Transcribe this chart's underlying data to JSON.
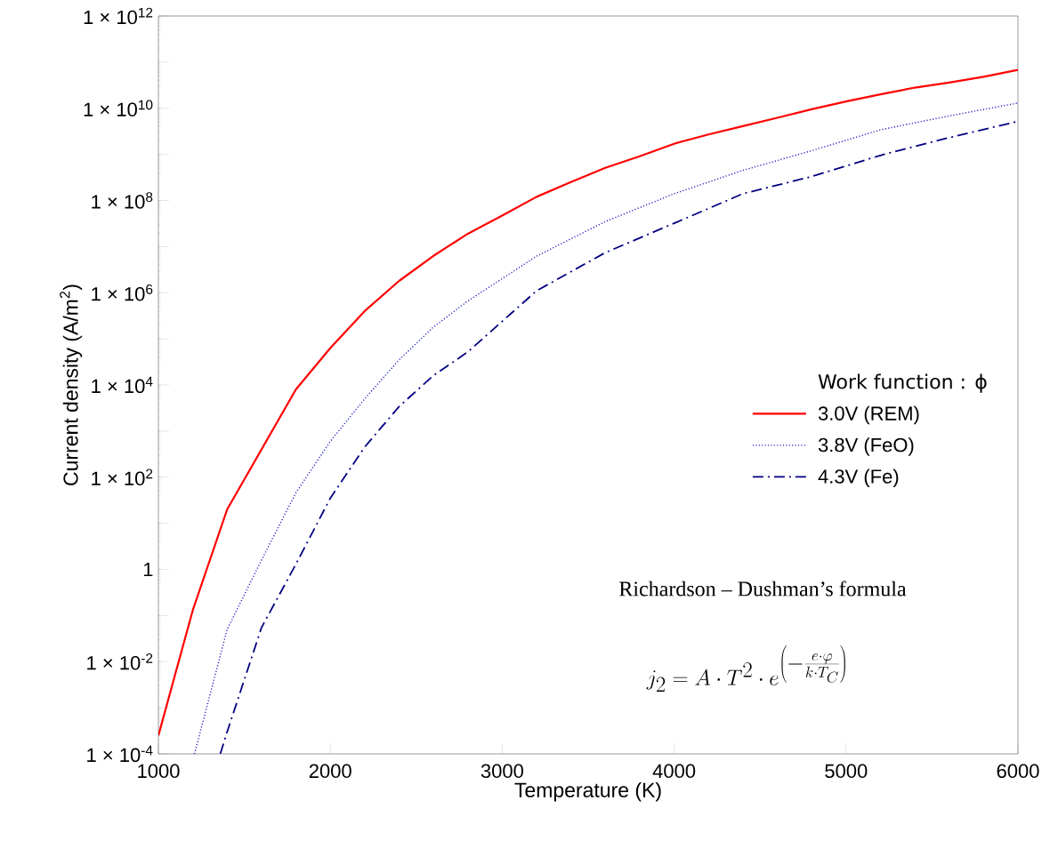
{
  "chart_data": {
    "type": "line",
    "log": "y",
    "xlabel": "Temperature (K)",
    "ylabel": "Current density (A/m$^{2}$)",
    "legend_title": "Work function : ϕ",
    "legend": "right",
    "xlim": [
      1000,
      6000
    ],
    "ylim": [
      0.0001,
      1000000000000.0
    ],
    "xticks": [
      1000,
      2000,
      3000,
      4000,
      5000,
      6000
    ],
    "yticks": [
      {
        "value": 0.0001,
        "label": "1 × 10$^{-4}$"
      },
      {
        "value": 0.001,
        "label": null
      },
      {
        "value": 0.01,
        "label": "1 × 10$^{-2}$"
      },
      {
        "value": 0.1,
        "label": null
      },
      {
        "value": 1,
        "label": "1"
      },
      {
        "value": 10,
        "label": null
      },
      {
        "value": 100,
        "label": "1 × 10$^{2}$"
      },
      {
        "value": 1000.0,
        "label": null
      },
      {
        "value": 10000.0,
        "label": "1 × 10$^{4}$"
      },
      {
        "value": 100000.0,
        "label": null
      },
      {
        "value": 1000000.0,
        "label": "1 × 10$^{6}$"
      },
      {
        "value": 10000000.0,
        "label": null
      },
      {
        "value": 100000000.0,
        "label": "1 × 10$^{8}$"
      },
      {
        "value": 1000000000.0,
        "label": null
      },
      {
        "value": 10000000000.0,
        "label": "1 × 10$^{10}$"
      },
      {
        "value": 100000000000.0,
        "label": null
      },
      {
        "value": 1000000000000.0,
        "label": "1 × 10$^{12}$"
      }
    ],
    "series": [
      {
        "name": "3.0V (REM)",
        "color": "#ff0000",
        "line_style": "solid",
        "x": [
          1000,
          1200,
          1400,
          1600,
          1800,
          2000,
          2200,
          2400,
          2600,
          2800,
          3000,
          3200,
          3400,
          3600,
          3800,
          4000,
          4200,
          4400,
          4600,
          4800,
          5000,
          5200,
          5400,
          5600,
          5800,
          6000
        ],
        "values": [
          0.00025,
          0.13,
          20,
          400,
          8000,
          63000.0,
          400000.0,
          1800000.0,
          6300000.0,
          19000000.0,
          47000000.0,
          120000000.0,
          250000000.0,
          510000000.0,
          910000000.0,
          1700000000.0,
          2700000000.0,
          4100000000.0,
          6200000000.0,
          9500000000.0,
          14000000000.0,
          20000000000.0,
          28000000000.0,
          36000000000.0,
          48000000000.0,
          68000000000.0
        ]
      },
      {
        "name": "3.8V (FeO)",
        "color": "#2020c0",
        "line_style": "dotted",
        "x": [
          1210,
          1400,
          1600,
          1800,
          2000,
          2200,
          2400,
          2600,
          2800,
          3200,
          3600,
          4000,
          4400,
          4800,
          5200,
          5600,
          6000
        ],
        "values": [
          0.0001,
          0.05,
          1.6,
          46,
          600,
          5000,
          35000.0,
          180000.0,
          660000.0,
          6200000.0,
          35000000.0,
          140000000.0,
          450000000.0,
          1200000000.0,
          3400000000.0,
          6800000000.0,
          13000000000.0
        ]
      },
      {
        "name": "4.3V (Fe)",
        "color": "#000080",
        "line_style": "dashdot",
        "x": [
          1360,
          1400,
          1600,
          1800,
          2000,
          2200,
          2400,
          2600,
          2800,
          3200,
          3600,
          4000,
          4400,
          4800,
          5200,
          5600,
          6000
        ],
        "values": [
          0.0001,
          0.0003,
          0.055,
          1.3,
          35,
          450,
          3400,
          16000.0,
          52000.0,
          1100000.0,
          7400000.0,
          32000000.0,
          140000000.0,
          330000000.0,
          950000000.0,
          2300000000.0,
          5200000000.0
        ]
      }
    ],
    "annotations": [
      "Richardson – Dushman’s formula",
      "j_2 = A\\cdot T^{2}\\cdot e^{\\left(-\\frac{e\\cdot\\varphi}{k\\cdot T_C}\\right)}"
    ]
  }
}
